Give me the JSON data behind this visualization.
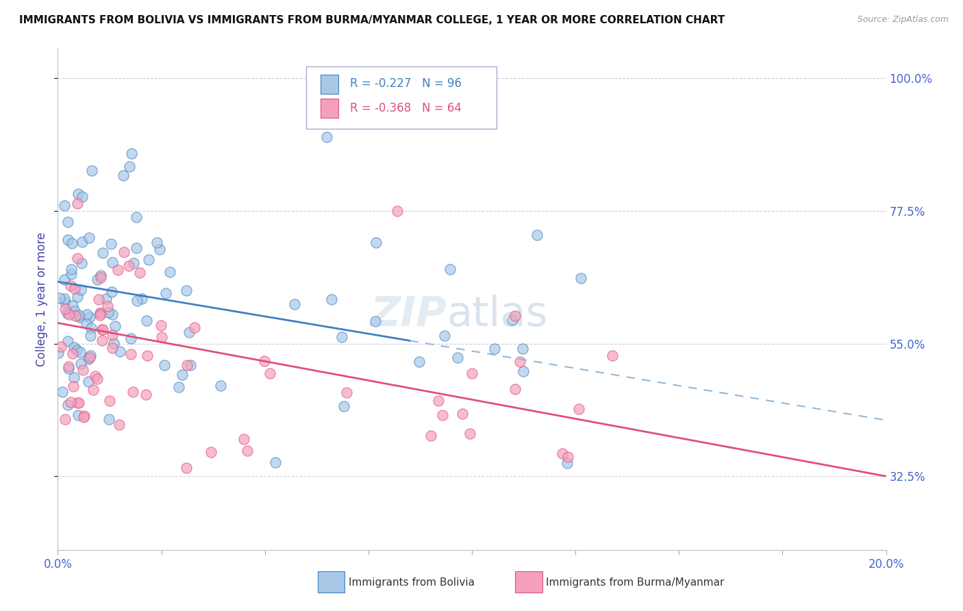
{
  "title": "IMMIGRANTS FROM BOLIVIA VS IMMIGRANTS FROM BURMA/MYANMAR COLLEGE, 1 YEAR OR MORE CORRELATION CHART",
  "source": "Source: ZipAtlas.com",
  "ylabel": "College, 1 year or more",
  "xlim": [
    0.0,
    0.2
  ],
  "ylim": [
    0.2,
    1.05
  ],
  "ytick_positions": [
    0.325,
    0.55,
    0.775,
    1.0
  ],
  "ytick_labels": [
    "32.5%",
    "55.0%",
    "77.5%",
    "100.0%"
  ],
  "bolivia_color": "#a8c8e8",
  "burma_color": "#f4a0bc",
  "bolivia_trend_color": "#4080c0",
  "burma_trend_color": "#e0507a",
  "dashed_line_color": "#90b8d8",
  "legend_R_bolivia": "R = -0.227",
  "legend_N_bolivia": "N = 96",
  "legend_R_burma": "R = -0.368",
  "legend_N_burma": "N = 64",
  "watermark": "ZIPatlas",
  "bolivia_trend_x0": 0.0,
  "bolivia_trend_y0": 0.655,
  "bolivia_trend_x1": 0.085,
  "bolivia_trend_y1": 0.555,
  "dashed_trend_x0": 0.085,
  "dashed_trend_y0": 0.555,
  "dashed_trend_x1": 0.2,
  "dashed_trend_y1": 0.42,
  "burma_trend_x0": 0.0,
  "burma_trend_y0": 0.585,
  "burma_trend_x1": 0.2,
  "burma_trend_y1": 0.325,
  "background_color": "#ffffff",
  "grid_color": "#ccccdd",
  "title_color": "#111111",
  "axis_label_color": "#4444aa",
  "tick_label_color": "#4466cc",
  "figsize": [
    14.06,
    8.92
  ],
  "dpi": 100
}
